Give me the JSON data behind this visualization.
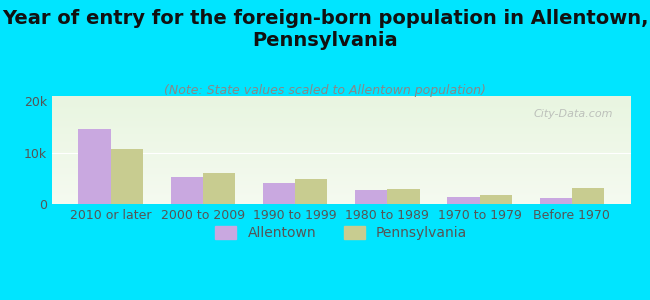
{
  "title": "Year of entry for the foreign-born population in Allentown,\nPennsylvania",
  "subtitle": "(Note: State values scaled to Allentown population)",
  "categories": [
    "2010 or later",
    "2000 to 2009",
    "1990 to 1999",
    "1980 to 1989",
    "1970 to 1979",
    "Before 1970"
  ],
  "allentown_values": [
    14500,
    5200,
    4000,
    2800,
    1300,
    1100
  ],
  "pennsylvania_values": [
    10700,
    6000,
    4900,
    2900,
    1800,
    3200
  ],
  "allentown_color": "#c9a8e0",
  "pennsylvania_color": "#c8cc90",
  "background_color": "#00e5ff",
  "plot_bg_top": "#e8f5e0",
  "plot_bg_bottom": "#f5faf0",
  "ylim": [
    0,
    21000
  ],
  "yticks": [
    0,
    10000,
    20000
  ],
  "ytick_labels": [
    "0",
    "10k",
    "20k"
  ],
  "watermark": "City-Data.com",
  "legend_labels": [
    "Allentown",
    "Pennsylvania"
  ],
  "title_fontsize": 14,
  "subtitle_fontsize": 9,
  "tick_fontsize": 9,
  "legend_fontsize": 10
}
